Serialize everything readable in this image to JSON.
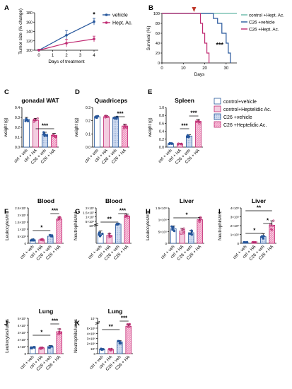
{
  "colors": {
    "vehicle": "#27579c",
    "hept": "#c02a72",
    "control": "#66b8a8",
    "ctrl_veh_fill": "#ffffff",
    "ctrl_ha_fill": "#f3cde0",
    "c26_veh_fill": "#cfdcf0",
    "c26_ha_fill": "#ef93be",
    "star": "#000000"
  },
  "legend_ce": {
    "entries": [
      "control+vehicle",
      "control+Heptelidic Ac.",
      "C26 +vehicle",
      "C26 +Heptelidic Ac."
    ]
  },
  "chart_data": [
    {
      "panel": "A",
      "type": "line",
      "x": [
        0,
        1,
        2,
        3,
        4
      ],
      "xticks": [
        "0",
        "1",
        "2",
        "3",
        "4"
      ],
      "xlabel": "Days of treatment",
      "ylabel": "Tumor size (% change)",
      "yticks": [
        "100",
        "120",
        "140",
        "160",
        "180"
      ],
      "ylim": [
        100,
        180
      ],
      "series": [
        {
          "name": "vehicle",
          "x": [
            0,
            2,
            4
          ],
          "values": [
            100,
            132,
            161
          ],
          "err": [
            2,
            10,
            7
          ]
        },
        {
          "name": "Hept. Ac.",
          "x": [
            0,
            2,
            4
          ],
          "values": [
            100,
            115,
            124
          ],
          "err": [
            2,
            8,
            6
          ]
        }
      ],
      "annotation": "*"
    },
    {
      "panel": "B",
      "type": "line",
      "xlabel": "Days",
      "ylabel": "Survival (%)",
      "xticks": [
        "0",
        "10",
        "20",
        "30"
      ],
      "yticks": [
        "0",
        "20",
        "40",
        "60",
        "80",
        "100"
      ],
      "xlim": [
        0,
        35
      ],
      "ylim": [
        0,
        100
      ],
      "series": [
        {
          "name": "control +Hept. Ac.",
          "x": [
            0,
            35
          ],
          "values": [
            100,
            100
          ]
        },
        {
          "name": "C26 +vehicle",
          "x": [
            0,
            20,
            24,
            26,
            28,
            30,
            31,
            32
          ],
          "values": [
            100,
            100,
            90,
            80,
            60,
            40,
            20,
            0
          ]
        },
        {
          "name": "C26 +Hept. Ac.",
          "x": [
            0,
            15,
            18,
            19,
            20,
            21,
            22
          ],
          "values": [
            100,
            100,
            80,
            60,
            40,
            20,
            0
          ]
        }
      ],
      "annotation": "***"
    },
    {
      "panel": "C",
      "type": "bar",
      "title": "gonadal WAT",
      "categories": [
        "ctrl + veh",
        "ctrl + HA",
        "C26 + veh",
        "C26 + HA"
      ],
      "ylabel": "weight (g)",
      "yticks": [
        "0.0",
        "0.1",
        "0.2",
        "0.3",
        "0.4"
      ],
      "ylim": [
        0,
        0.4
      ],
      "values": [
        0.28,
        0.27,
        0.13,
        0.12
      ],
      "err": [
        0.02,
        0.02,
        0.02,
        0.02
      ],
      "sig": [
        {
          "from": 1,
          "to": 3,
          "label": "***"
        }
      ]
    },
    {
      "panel": "D",
      "type": "bar",
      "title": "Quadriceps",
      "categories": [
        "ctrl + veh",
        "ctrl + HA",
        "C26 + veh",
        "C26 + HA"
      ],
      "ylabel": "weight (g)",
      "yticks": [
        "0.0",
        "0.1",
        "0.2",
        "0.3"
      ],
      "ylim": [
        0,
        0.3
      ],
      "values": [
        0.23,
        0.23,
        0.22,
        0.16
      ],
      "err": [
        0.008,
        0.008,
        0.01,
        0.015
      ],
      "sig": [
        {
          "from": 2,
          "to": 3,
          "label": "***"
        }
      ]
    },
    {
      "panel": "E",
      "type": "bar",
      "title": "Spleen",
      "categories": [
        "ctrl + veh",
        "ctrl + HA",
        "C26 + veh",
        "C26 + HA"
      ],
      "ylabel": "weight (g)",
      "yticks": [
        "0.0",
        "0.2",
        "0.4",
        "0.6",
        "0.8",
        "1.0"
      ],
      "ylim": [
        0,
        1.0
      ],
      "values": [
        0.09,
        0.08,
        0.28,
        0.65
      ],
      "err": [
        0.01,
        0.01,
        0.03,
        0.05
      ],
      "sig": [
        {
          "from": 1,
          "to": 2,
          "label": "***"
        },
        {
          "from": 2,
          "to": 3,
          "label": "***"
        }
      ]
    },
    {
      "panel": "F",
      "type": "bar",
      "title": "Blood",
      "categories": [
        "ctrl + veh",
        "ctrl + HA",
        "C26 + veh",
        "C26 + HA"
      ],
      "ylabel": "Leukocytes/mL",
      "yticks": [
        "0",
        "5×10⁶",
        "1×10⁷",
        "1.5×10⁷",
        "2×10⁷",
        "2.5×10⁷"
      ],
      "ylim": [
        0,
        25000000
      ],
      "values": [
        2500000,
        2500000,
        5000000,
        17000000
      ],
      "err": [
        500000,
        500000,
        1000000,
        1500000
      ],
      "sig": [
        {
          "from": 0,
          "to": 2,
          "label": "*"
        },
        {
          "from": 2,
          "to": 3,
          "label": "***"
        }
      ]
    },
    {
      "panel": "G",
      "type": "bar",
      "title": "Blood",
      "categories": [
        "ctrl + veh",
        "ctrl + HA",
        "C26 + veh",
        "C26 + HA"
      ],
      "ylabel": "Neutrophils/mL",
      "yticks": [
        "10⁶",
        "5×10⁶",
        "1×10⁷",
        "1.5×10⁷",
        "2×10⁷"
      ],
      "values": [
        550000,
        450000,
        2400000,
        11000000
      ],
      "err": [
        150000,
        100000,
        400000,
        2000000
      ],
      "sig": [
        {
          "from": 0,
          "to": 2,
          "label": "**"
        },
        {
          "from": 2,
          "to": 3,
          "label": "***"
        }
      ]
    },
    {
      "panel": "H",
      "type": "bar",
      "title": "Liver",
      "categories": [
        "ctrl + veh",
        "ctrl + HA",
        "C26 + veh",
        "C26 + HA"
      ],
      "ylabel": "Leukocytes/mL",
      "yticks": [
        "0",
        "5×10⁵",
        "1×10⁶",
        "1.5×10⁶"
      ],
      "ylim": [
        0,
        1500000
      ],
      "values": [
        620000,
        520000,
        450000,
        1000000
      ],
      "err": [
        120000,
        120000,
        100000,
        100000
      ],
      "sig": [
        {
          "from": 0,
          "to": 3,
          "label": "*"
        }
      ]
    },
    {
      "panel": "I",
      "type": "bar",
      "title": "Liver",
      "categories": [
        "ctrl + veh",
        "ctrl + HA",
        "C26 + veh",
        "C26 + HA"
      ],
      "ylabel": "Neutrophils/mL",
      "yticks": [
        "0",
        "1×10⁵",
        "2×10⁵",
        "3×10⁵",
        "4×10⁵"
      ],
      "ylim": [
        0,
        400000
      ],
      "values": [
        5000,
        8000,
        75000,
        205000
      ],
      "err": [
        3000,
        4000,
        35000,
        50000
      ],
      "sig": [
        {
          "from": 0,
          "to": 2,
          "label": "*"
        },
        {
          "from": 2,
          "to": 3,
          "label": "*"
        },
        {
          "from": 0,
          "to": 3,
          "label": "**"
        }
      ]
    },
    {
      "panel": "J",
      "type": "bar",
      "title": "Lung",
      "categories": [
        "ctrl + veh",
        "ctrl + HA",
        "C26 + veh",
        "C26 + HA"
      ],
      "ylabel": "Leukocytes/lungs",
      "yticks": [
        "0",
        "1×10⁷",
        "2×10⁷",
        "3×10⁷",
        "4×10⁷",
        "5×10⁷"
      ],
      "ylim": [
        0,
        50000000
      ],
      "values": [
        8500000,
        8000000,
        10000000,
        31000000
      ],
      "err": [
        1000000,
        1000000,
        1500000,
        4000000
      ],
      "sig": [
        {
          "from": 0,
          "to": 2,
          "label": "*"
        },
        {
          "from": 2,
          "to": 3,
          "label": "***"
        }
      ]
    },
    {
      "panel": "K",
      "type": "bar",
      "title": "Lung",
      "categories": [
        "ctrl + veh",
        "ctrl + HA",
        "C26 + veh",
        "C26 + HA"
      ],
      "ylabel": "Neutrophils/lungs",
      "yticks": [
        "0",
        "10⁶",
        "2×10⁶",
        "3×10⁶",
        "4×10⁶",
        "5×10⁶",
        "10⁷"
      ],
      "values": [
        900000,
        850000,
        2300000,
        6000000
      ],
      "err": [
        150000,
        150000,
        300000,
        1000000
      ],
      "sig": [
        {
          "from": 0,
          "to": 2,
          "label": "**"
        },
        {
          "from": 2,
          "to": 3,
          "label": "***"
        }
      ]
    }
  ]
}
